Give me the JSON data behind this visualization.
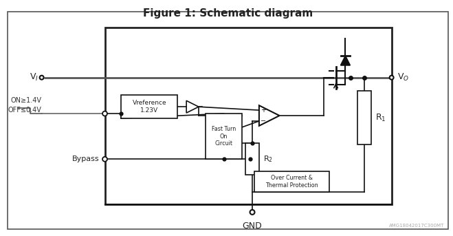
{
  "title": "Figure 1: Schematic diagram",
  "title_fontsize": 11,
  "bg_color": "#ffffff",
  "dark_color": "#111111",
  "label_Vref": "Vreference\n1.23V",
  "label_FastTurn": "Fast Turn\nOn\nCircuit",
  "label_R1": "R₁",
  "label_R2": "R₂",
  "label_OCP": "Over Current &\nThermal Protection",
  "label_ON": "ON≥1.4V",
  "label_OFF": "OFF≤0.4V",
  "label_Bypass": "Bypass",
  "label_GND": "GND",
  "watermark": "AMG18042017C300MT"
}
